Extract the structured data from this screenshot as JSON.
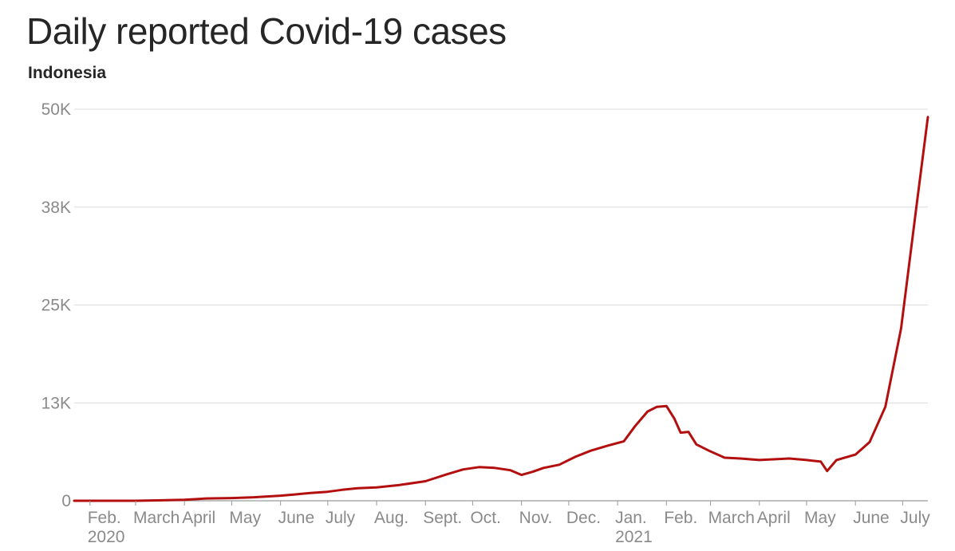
{
  "chart_data": {
    "type": "line",
    "title": "Daily reported Covid-19 cases",
    "subtitle": "Indonesia",
    "xlabel": "",
    "ylabel": "",
    "ylim": [
      0,
      50000
    ],
    "yticks": [
      {
        "value": 0,
        "label": "0"
      },
      {
        "value": 12500,
        "label": "13K"
      },
      {
        "value": 25000,
        "label": "25K"
      },
      {
        "value": 37500,
        "label": "38K"
      },
      {
        "value": 50000,
        "label": "50K"
      }
    ],
    "xlim": [
      "2020-01-22",
      "2021-07-17"
    ],
    "xticks": [
      {
        "date": "2020-02-01",
        "label": "Feb.",
        "sublabel": "2020"
      },
      {
        "date": "2020-03-01",
        "label": "March",
        "sublabel": ""
      },
      {
        "date": "2020-04-01",
        "label": "April",
        "sublabel": ""
      },
      {
        "date": "2020-05-01",
        "label": "May",
        "sublabel": ""
      },
      {
        "date": "2020-06-01",
        "label": "June",
        "sublabel": ""
      },
      {
        "date": "2020-07-01",
        "label": "July",
        "sublabel": ""
      },
      {
        "date": "2020-08-01",
        "label": "Aug.",
        "sublabel": ""
      },
      {
        "date": "2020-09-01",
        "label": "Sept.",
        "sublabel": ""
      },
      {
        "date": "2020-10-01",
        "label": "Oct.",
        "sublabel": ""
      },
      {
        "date": "2020-11-01",
        "label": "Nov.",
        "sublabel": ""
      },
      {
        "date": "2020-12-01",
        "label": "Dec.",
        "sublabel": ""
      },
      {
        "date": "2021-01-01",
        "label": "Jan.",
        "sublabel": "2021"
      },
      {
        "date": "2021-02-01",
        "label": "Feb.",
        "sublabel": ""
      },
      {
        "date": "2021-03-01",
        "label": "March",
        "sublabel": ""
      },
      {
        "date": "2021-04-01",
        "label": "April",
        "sublabel": ""
      },
      {
        "date": "2021-05-01",
        "label": "May",
        "sublabel": ""
      },
      {
        "date": "2021-06-01",
        "label": "June",
        "sublabel": ""
      },
      {
        "date": "2021-07-01",
        "label": "July",
        "sublabel": ""
      }
    ],
    "grid": true,
    "series": [
      {
        "color": "#b30f0f",
        "points": [
          [
            "2020-01-22",
            0
          ],
          [
            "2020-03-01",
            0
          ],
          [
            "2020-03-15",
            50
          ],
          [
            "2020-04-01",
            120
          ],
          [
            "2020-04-15",
            300
          ],
          [
            "2020-05-01",
            350
          ],
          [
            "2020-05-15",
            450
          ],
          [
            "2020-06-01",
            650
          ],
          [
            "2020-06-10",
            800
          ],
          [
            "2020-06-20",
            1000
          ],
          [
            "2020-07-01",
            1150
          ],
          [
            "2020-07-10",
            1400
          ],
          [
            "2020-07-20",
            1600
          ],
          [
            "2020-08-01",
            1700
          ],
          [
            "2020-08-15",
            2000
          ],
          [
            "2020-09-01",
            2500
          ],
          [
            "2020-09-15",
            3400
          ],
          [
            "2020-09-25",
            4000
          ],
          [
            "2020-10-05",
            4300
          ],
          [
            "2020-10-15",
            4200
          ],
          [
            "2020-10-25",
            3900
          ],
          [
            "2020-11-01",
            3300
          ],
          [
            "2020-11-08",
            3700
          ],
          [
            "2020-11-15",
            4200
          ],
          [
            "2020-11-25",
            4600
          ],
          [
            "2020-12-05",
            5600
          ],
          [
            "2020-12-15",
            6400
          ],
          [
            "2020-12-25",
            7000
          ],
          [
            "2021-01-05",
            7600
          ],
          [
            "2021-01-12",
            9500
          ],
          [
            "2021-01-20",
            11400
          ],
          [
            "2021-01-26",
            12000
          ],
          [
            "2021-02-01",
            12100
          ],
          [
            "2021-02-06",
            10500
          ],
          [
            "2021-02-10",
            8700
          ],
          [
            "2021-02-15",
            8800
          ],
          [
            "2021-02-20",
            7200
          ],
          [
            "2021-02-28",
            6400
          ],
          [
            "2021-03-10",
            5500
          ],
          [
            "2021-03-20",
            5400
          ],
          [
            "2021-04-01",
            5200
          ],
          [
            "2021-04-10",
            5300
          ],
          [
            "2021-04-20",
            5400
          ],
          [
            "2021-05-01",
            5200
          ],
          [
            "2021-05-10",
            5000
          ],
          [
            "2021-05-14",
            3800
          ],
          [
            "2021-05-20",
            5200
          ],
          [
            "2021-06-01",
            5900
          ],
          [
            "2021-06-10",
            7500
          ],
          [
            "2021-06-20",
            12000
          ],
          [
            "2021-06-30",
            22000
          ],
          [
            "2021-07-05",
            30000
          ],
          [
            "2021-07-10",
            38000
          ],
          [
            "2021-07-17",
            49000
          ]
        ]
      }
    ]
  }
}
